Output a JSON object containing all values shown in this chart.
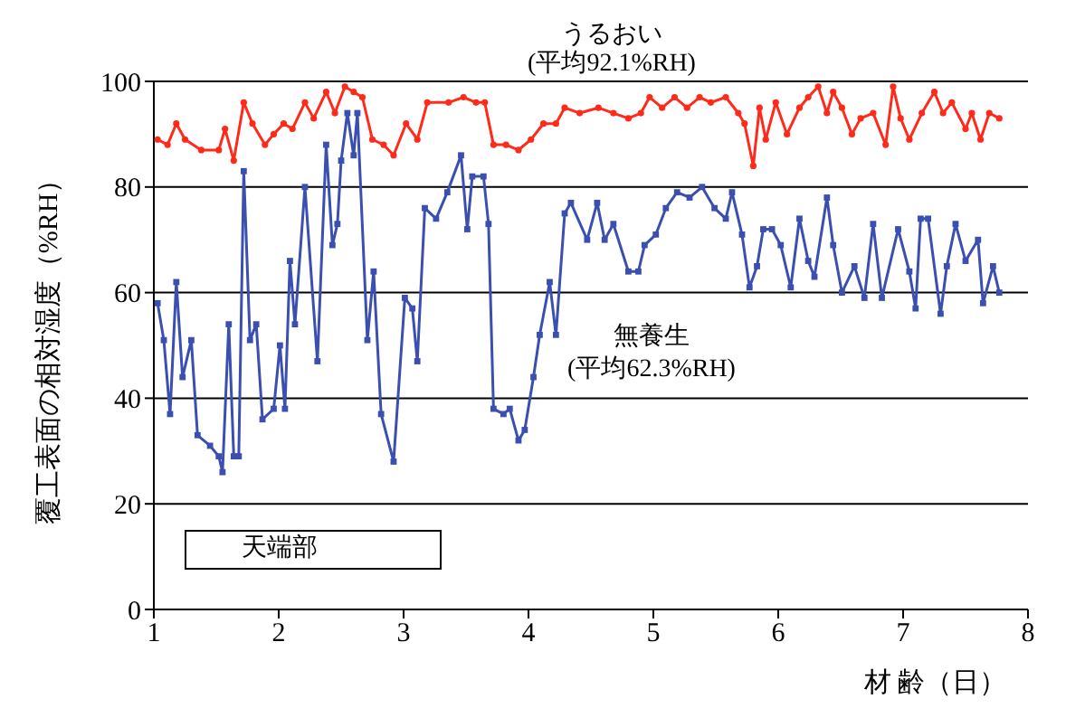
{
  "chart_data": {
    "type": "line",
    "xlabel": "材 齢（日）",
    "ylabel": "覆工表面の相対湿度（%RH）",
    "xlim": [
      1,
      8
    ],
    "xticks": [
      1,
      2,
      3,
      4,
      5,
      6,
      7,
      8
    ],
    "ylim": [
      0,
      100
    ],
    "yticks": [
      0,
      20,
      40,
      60,
      80,
      100
    ],
    "grid": "y",
    "legend": false,
    "line_style": "solid",
    "annotations": [
      "(平均92.1%RH)",
      "(平均62.3%RH)",
      "天端部"
    ],
    "series": [
      {
        "name": "うるおい",
        "color": "#ff2a1a",
        "marker": "circle",
        "x": [
          1.03,
          1.11,
          1.18,
          1.25,
          1.38,
          1.52,
          1.57,
          1.64,
          1.72,
          1.79,
          1.89,
          1.96,
          2.04,
          2.11,
          2.21,
          2.28,
          2.38,
          2.45,
          2.53,
          2.6,
          2.67,
          2.75,
          2.84,
          2.92,
          3.02,
          3.11,
          3.19,
          3.36,
          3.48,
          3.58,
          3.65,
          3.72,
          3.82,
          3.92,
          4.02,
          4.12,
          4.22,
          4.29,
          4.41,
          4.56,
          4.68,
          4.8,
          4.9,
          4.97,
          5.07,
          5.17,
          5.27,
          5.37,
          5.46,
          5.58,
          5.68,
          5.73,
          5.8,
          5.85,
          5.9,
          5.98,
          6.07,
          6.17,
          6.24,
          6.32,
          6.39,
          6.44,
          6.51,
          6.59,
          6.66,
          6.76,
          6.86,
          6.92,
          6.98,
          7.05,
          7.15,
          7.25,
          7.32,
          7.39,
          7.5,
          7.55,
          7.62,
          7.69,
          7.77
        ],
        "values": [
          89,
          88,
          92,
          89,
          87,
          87,
          91,
          85,
          96,
          92,
          88,
          90,
          92,
          91,
          96,
          93,
          98,
          94,
          99,
          98,
          97,
          89,
          88,
          86,
          92,
          89,
          96,
          96,
          97,
          96,
          96,
          88,
          88,
          87,
          89,
          92,
          92,
          95,
          94,
          95,
          94,
          93,
          94,
          97,
          95,
          97,
          95,
          97,
          96,
          97,
          94,
          92,
          84,
          95,
          89,
          96,
          90,
          95,
          97,
          99,
          94,
          98,
          95,
          90,
          93,
          94,
          88,
          99,
          93,
          89,
          94,
          98,
          94,
          96,
          91,
          94,
          89,
          94,
          93
        ]
      },
      {
        "name": "無養生",
        "color": "#3a4fb0",
        "marker": "square",
        "x": [
          1.03,
          1.08,
          1.13,
          1.18,
          1.23,
          1.3,
          1.35,
          1.45,
          1.52,
          1.55,
          1.6,
          1.64,
          1.68,
          1.72,
          1.77,
          1.82,
          1.87,
          1.96,
          2.01,
          2.05,
          2.09,
          2.13,
          2.21,
          2.31,
          2.38,
          2.43,
          2.47,
          2.5,
          2.55,
          2.6,
          2.63,
          2.71,
          2.76,
          2.82,
          2.92,
          3.01,
          3.07,
          3.11,
          3.17,
          3.26,
          3.35,
          3.46,
          3.51,
          3.55,
          3.64,
          3.68,
          3.72,
          3.8,
          3.85,
          3.92,
          3.97,
          4.04,
          4.09,
          4.17,
          4.22,
          4.29,
          4.34,
          4.47,
          4.55,
          4.61,
          4.68,
          4.8,
          4.88,
          4.93,
          5.02,
          5.1,
          5.19,
          5.29,
          5.39,
          5.49,
          5.58,
          5.63,
          5.71,
          5.77,
          5.83,
          5.88,
          5.95,
          6.02,
          6.1,
          6.17,
          6.24,
          6.29,
          6.39,
          6.44,
          6.51,
          6.61,
          6.69,
          6.76,
          6.83,
          6.96,
          7.05,
          7.1,
          7.14,
          7.2,
          7.3,
          7.35,
          7.42,
          7.5,
          7.6,
          7.64,
          7.72,
          7.77
        ],
        "values": [
          58,
          51,
          37,
          62,
          44,
          51,
          33,
          31,
          29,
          26,
          54,
          29,
          29,
          83,
          51,
          54,
          36,
          38,
          50,
          38,
          66,
          54,
          80,
          47,
          88,
          69,
          73,
          85,
          94,
          86,
          94,
          51,
          64,
          37,
          28,
          59,
          57,
          47,
          76,
          74,
          79,
          86,
          72,
          82,
          82,
          73,
          38,
          37,
          38,
          32,
          34,
          44,
          52,
          62,
          52,
          75,
          77,
          70,
          77,
          70,
          73,
          64,
          64,
          69,
          71,
          76,
          79,
          78,
          80,
          76,
          74,
          79,
          71,
          61,
          65,
          72,
          72,
          69,
          61,
          74,
          66,
          63,
          78,
          69,
          60,
          65,
          59,
          73,
          59,
          72,
          64,
          57,
          74,
          74,
          56,
          65,
          73,
          66,
          70,
          58,
          65,
          60
        ]
      }
    ]
  }
}
